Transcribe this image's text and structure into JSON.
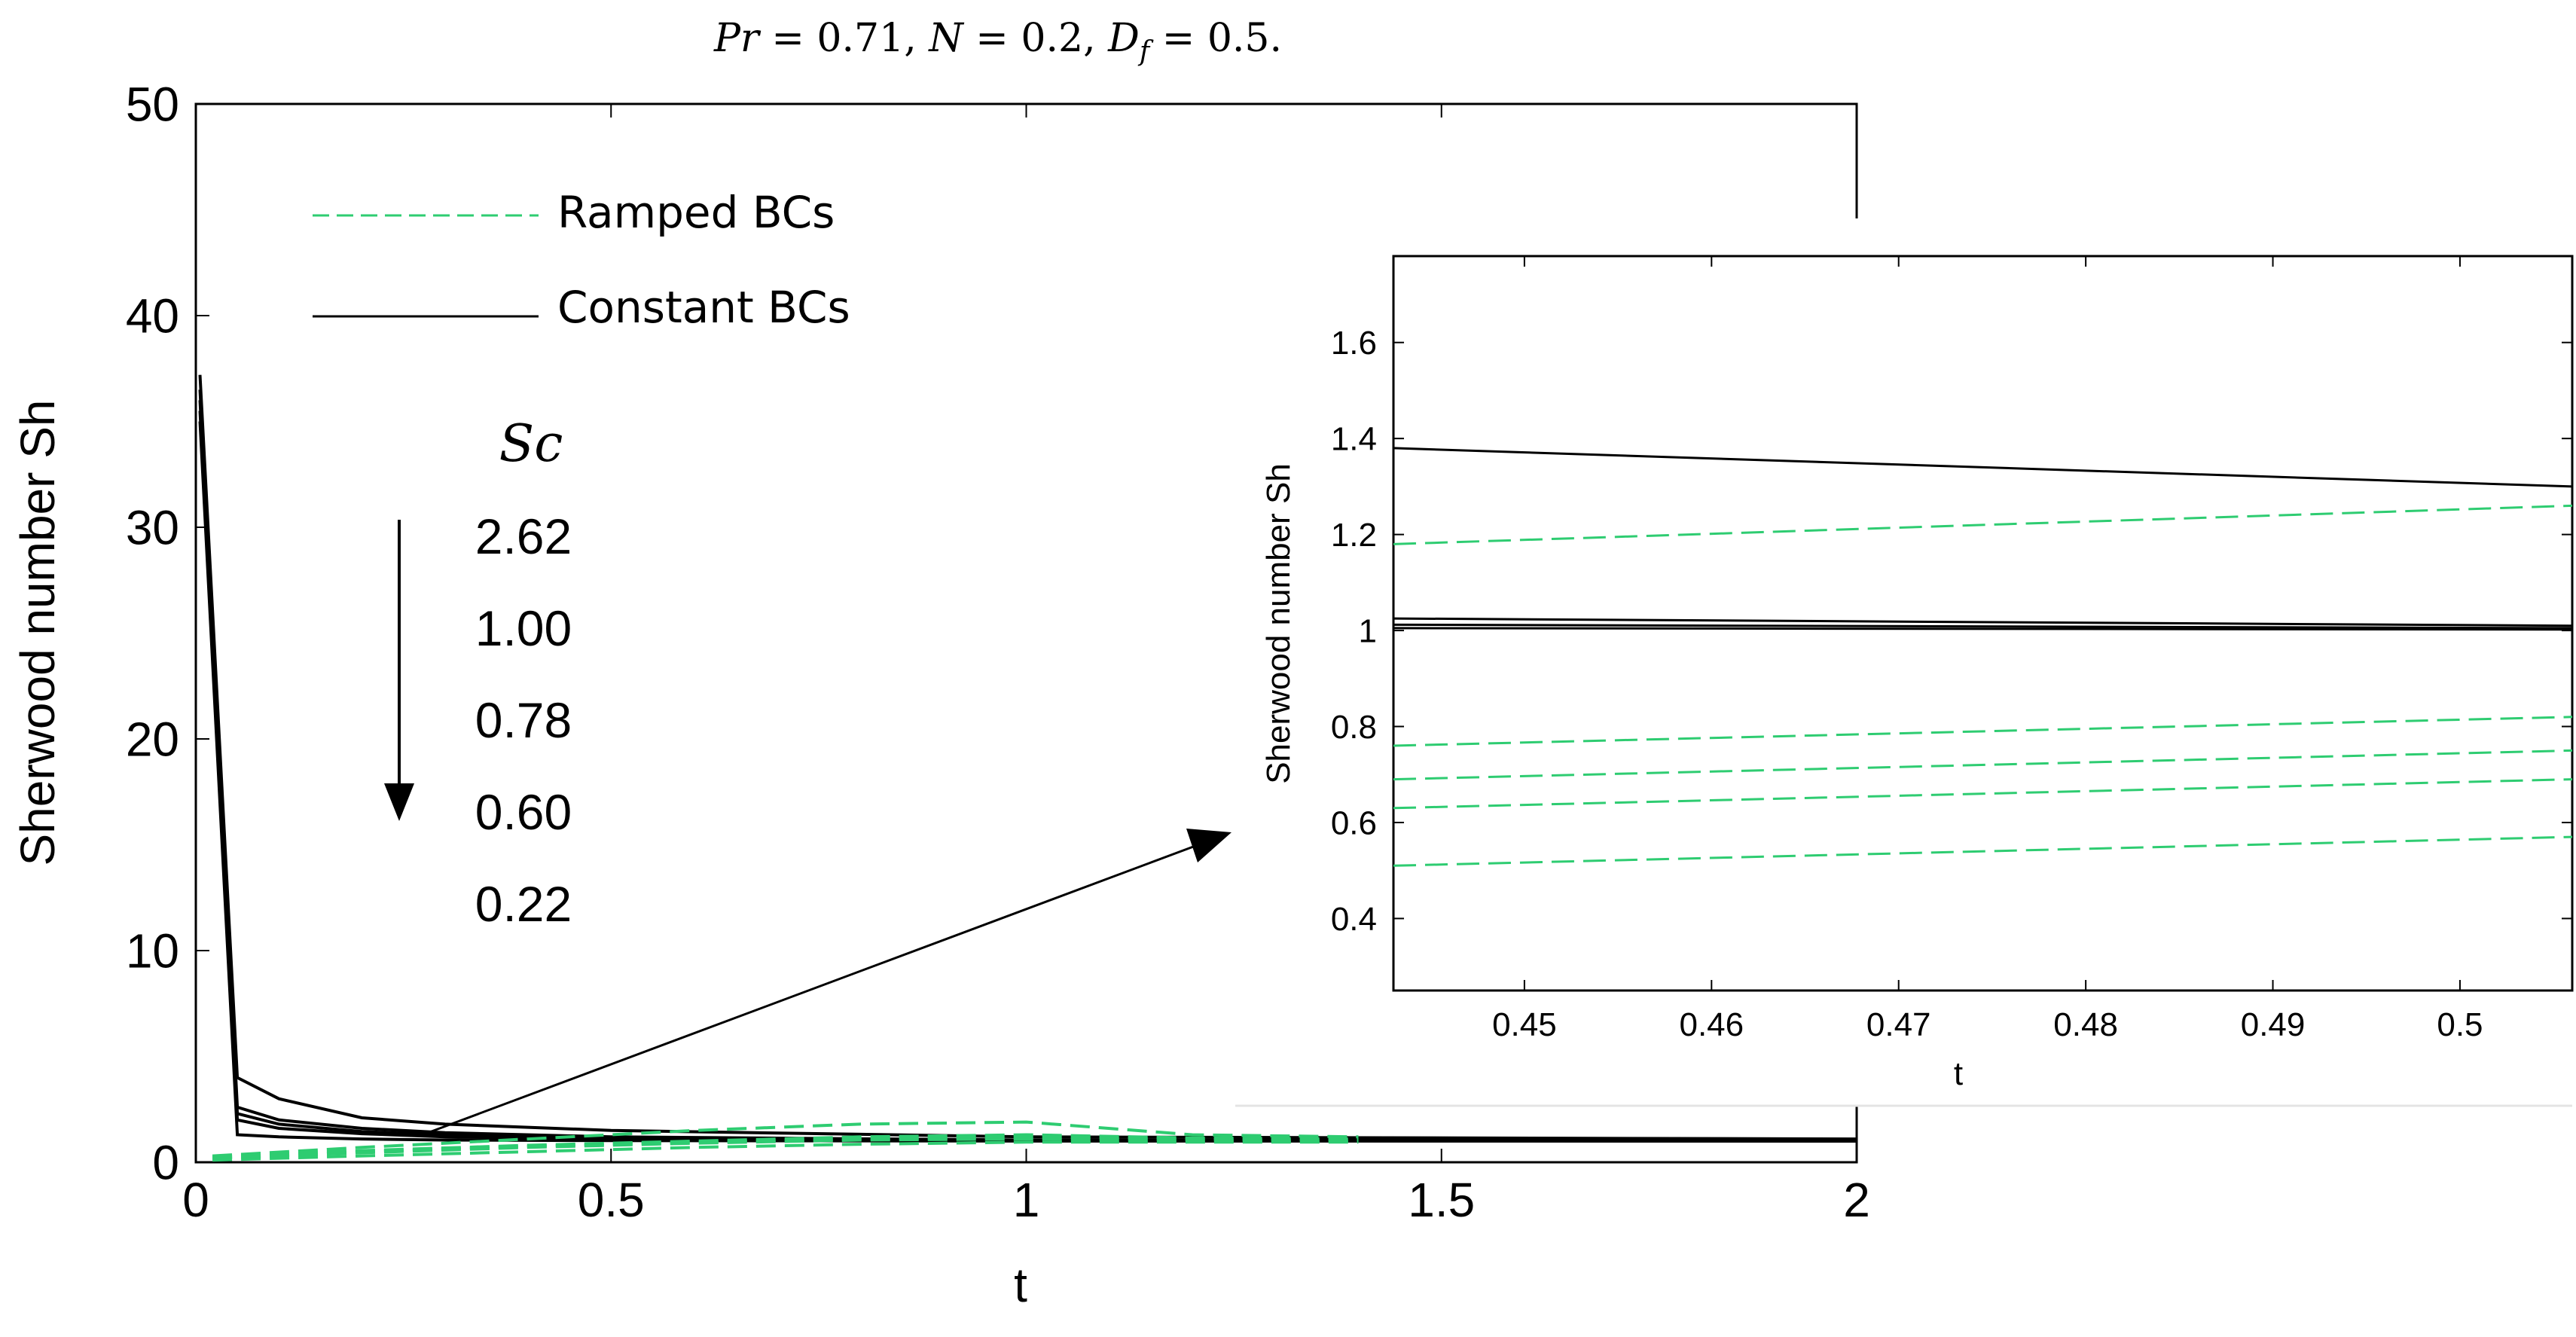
{
  "chart_data": [
    {
      "type": "line",
      "role": "main",
      "title": "Pr = 0.71, N = 0.2, D_f = 0.5.",
      "title_parts": [
        {
          "text": "Pr",
          "style": "italic"
        },
        {
          "text": " = 0.71, ",
          "style": "normal"
        },
        {
          "text": "N",
          "style": "italic"
        },
        {
          "text": " = 0.2, ",
          "style": "normal"
        },
        {
          "text": "D",
          "style": "italic"
        },
        {
          "text": "f",
          "style": "italic-sub"
        },
        {
          "text": " = 0.5.",
          "style": "normal"
        }
      ],
      "xlabel": "t",
      "ylabel": "Sherwood number Sh",
      "xlim": [
        0,
        2
      ],
      "ylim": [
        0,
        50
      ],
      "xticks": [
        0,
        0.5,
        1,
        1.5,
        2
      ],
      "xtick_labels": [
        "0",
        "0.5",
        "1",
        "1.5",
        "2"
      ],
      "yticks": [
        0,
        10,
        20,
        30,
        40,
        50
      ],
      "ytick_labels": [
        "0",
        "10",
        "20",
        "30",
        "40",
        "50"
      ],
      "legend": [
        {
          "label": "Ramped BCs",
          "style": "dashed",
          "color": "#2ecc71"
        },
        {
          "label": "Constant BCs",
          "style": "solid",
          "color": "#000000"
        }
      ],
      "annotation": {
        "param_label": "Sc",
        "values": [
          "2.62",
          "1.00",
          "0.78",
          "0.60",
          "0.22"
        ],
        "arrow": "down"
      },
      "series": [
        {
          "name": "Constant Sc=2.62",
          "style": "solid",
          "color": "#000000",
          "x": [
            0.005,
            0.05,
            0.1,
            0.2,
            0.3,
            0.5,
            1.0,
            2.0
          ],
          "y": [
            37.2,
            4.0,
            3.0,
            2.1,
            1.8,
            1.5,
            1.2,
            1.1
          ]
        },
        {
          "name": "Constant Sc=1.00",
          "style": "solid",
          "color": "#000000",
          "x": [
            0.005,
            0.05,
            0.1,
            0.2,
            0.3,
            0.5,
            1.0,
            2.0
          ],
          "y": [
            36.5,
            2.6,
            2.0,
            1.6,
            1.4,
            1.2,
            1.05,
            1.02
          ]
        },
        {
          "name": "Constant Sc=0.78",
          "style": "solid",
          "color": "#000000",
          "x": [
            0.005,
            0.05,
            0.1,
            0.2,
            0.3,
            0.5,
            1.0,
            2.0
          ],
          "y": [
            36.0,
            2.3,
            1.8,
            1.45,
            1.3,
            1.15,
            1.03,
            1.01
          ]
        },
        {
          "name": "Constant Sc=0.60",
          "style": "solid",
          "color": "#000000",
          "x": [
            0.005,
            0.05,
            0.1,
            0.2,
            0.3,
            0.5,
            1.0,
            2.0
          ],
          "y": [
            35.5,
            2.0,
            1.6,
            1.35,
            1.2,
            1.1,
            1.02,
            1.0
          ]
        },
        {
          "name": "Constant Sc=0.22",
          "style": "solid",
          "color": "#000000",
          "x": [
            0.005,
            0.05,
            0.1,
            0.2,
            0.3,
            0.5,
            1.0,
            2.0
          ],
          "y": [
            35.0,
            1.3,
            1.2,
            1.1,
            1.05,
            1.02,
            1.0,
            1.0
          ]
        },
        {
          "name": "Ramped Sc=2.62",
          "style": "dashed",
          "color": "#2ecc71",
          "x": [
            0.02,
            0.2,
            0.4,
            0.6,
            0.8,
            1.0,
            1.2,
            1.4
          ],
          "y": [
            0.3,
            0.7,
            1.1,
            1.5,
            1.8,
            1.9,
            1.3,
            1.2
          ]
        },
        {
          "name": "Ramped Sc=1.00",
          "style": "dashed",
          "color": "#2ecc71",
          "x": [
            0.02,
            0.2,
            0.4,
            0.6,
            0.8,
            1.0,
            1.2,
            1.4
          ],
          "y": [
            0.25,
            0.55,
            0.8,
            1.0,
            1.2,
            1.3,
            1.15,
            1.1
          ]
        },
        {
          "name": "Ramped Sc=0.78",
          "style": "dashed",
          "color": "#2ecc71",
          "x": [
            0.02,
            0.2,
            0.4,
            0.6,
            0.8,
            1.0,
            1.2,
            1.4
          ],
          "y": [
            0.2,
            0.5,
            0.75,
            0.95,
            1.1,
            1.2,
            1.1,
            1.05
          ]
        },
        {
          "name": "Ramped Sc=0.60",
          "style": "dashed",
          "color": "#2ecc71",
          "x": [
            0.02,
            0.2,
            0.4,
            0.6,
            0.8,
            1.0,
            1.2,
            1.4
          ],
          "y": [
            0.18,
            0.45,
            0.7,
            0.9,
            1.05,
            1.1,
            1.05,
            1.0
          ]
        },
        {
          "name": "Ramped Sc=0.22",
          "style": "dashed",
          "color": "#2ecc71",
          "x": [
            0.02,
            0.2,
            0.4,
            0.6,
            0.8,
            1.0,
            1.2,
            1.4
          ],
          "y": [
            0.1,
            0.3,
            0.5,
            0.7,
            0.85,
            0.95,
            0.95,
            0.95
          ]
        }
      ]
    },
    {
      "type": "line",
      "role": "inset",
      "xlabel": "t",
      "ylabel": "Sherwood number Sh",
      "xlim": [
        0.443,
        0.506
      ],
      "ylim": [
        0.25,
        1.78
      ],
      "xticks": [
        0.45,
        0.46,
        0.47,
        0.48,
        0.49,
        0.5
      ],
      "xtick_labels": [
        "0.45",
        "0.46",
        "0.47",
        "0.48",
        "0.49",
        "0.5"
      ],
      "yticks": [
        0.4,
        0.6,
        0.8,
        1.0,
        1.2,
        1.4,
        1.6
      ],
      "ytick_labels": [
        "0.4",
        "0.6",
        "0.8",
        "1",
        "1.2",
        "1.4",
        "1.6"
      ],
      "series": [
        {
          "name": "Constant Sc=2.62",
          "style": "solid",
          "color": "#000000",
          "x": [
            0.443,
            0.506
          ],
          "y": [
            1.38,
            1.3
          ]
        },
        {
          "name": "Constant Sc=1.00",
          "style": "solid",
          "color": "#000000",
          "x": [
            0.443,
            0.506
          ],
          "y": [
            1.025,
            1.01
          ]
        },
        {
          "name": "Constant Sc=0.78",
          "style": "solid",
          "color": "#000000",
          "x": [
            0.443,
            0.506
          ],
          "y": [
            1.012,
            1.005
          ]
        },
        {
          "name": "Constant Sc=0.60",
          "style": "solid",
          "color": "#000000",
          "x": [
            0.443,
            0.506
          ],
          "y": [
            1.005,
            1.002
          ]
        },
        {
          "name": "Ramped Sc=2.62",
          "style": "dashed",
          "color": "#2ecc71",
          "x": [
            0.443,
            0.506
          ],
          "y": [
            1.18,
            1.26
          ]
        },
        {
          "name": "Ramped Sc=1.00",
          "style": "dashed",
          "color": "#2ecc71",
          "x": [
            0.443,
            0.506
          ],
          "y": [
            0.76,
            0.82
          ]
        },
        {
          "name": "Ramped Sc=0.78",
          "style": "dashed",
          "color": "#2ecc71",
          "x": [
            0.443,
            0.506
          ],
          "y": [
            0.69,
            0.75
          ]
        },
        {
          "name": "Ramped Sc=0.60",
          "style": "dashed",
          "color": "#2ecc71",
          "x": [
            0.443,
            0.506
          ],
          "y": [
            0.63,
            0.69
          ]
        },
        {
          "name": "Ramped Sc=0.22",
          "style": "dashed",
          "color": "#2ecc71",
          "x": [
            0.443,
            0.506
          ],
          "y": [
            0.51,
            0.57
          ]
        }
      ]
    }
  ]
}
